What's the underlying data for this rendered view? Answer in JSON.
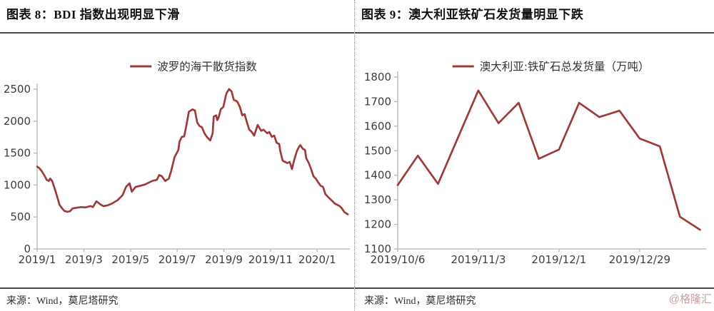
{
  "colors": {
    "line": "#9e3b3a",
    "axis": "#b5b5b5",
    "tick_text": "#3d3d3d",
    "rule": "#4a4a4a",
    "divider": "#9a9a9a",
    "watermark": "#c9a0a0"
  },
  "left_panel": {
    "title": "图表 8：BDI 指数出现明显下滑",
    "source": "来源：Wind，莫尼塔研究"
  },
  "right_panel": {
    "title": "图表 9：澳大利亚铁矿石发货量明显下跌",
    "source": "来源：Wind，莫尼塔研究",
    "watermark": "@格隆汇"
  },
  "chart_data": [
    {
      "type": "line",
      "panel": "left",
      "legend": "波罗的海干散货指数",
      "line_color": "#9e3b3a",
      "grid": false,
      "legend_position": "top-center",
      "x_axis": {
        "unit": "months since 2019/1",
        "tick_labels": [
          "2019/1",
          "2019/3",
          "2019/5",
          "2019/7",
          "2019/9",
          "2019/11",
          "2020/1"
        ],
        "tick_positions": [
          0,
          2,
          4,
          6,
          8,
          10,
          12
        ],
        "range": [
          0,
          13.4
        ]
      },
      "y_axis": {
        "ticks": [
          0,
          500,
          1000,
          1500,
          2000,
          2500
        ],
        "range": [
          0,
          2500
        ]
      },
      "points": [
        [
          0,
          1288
        ],
        [
          0.1,
          1262
        ],
        [
          0.2,
          1217
        ],
        [
          0.3,
          1157
        ],
        [
          0.41,
          1082
        ],
        [
          0.5,
          1064
        ],
        [
          0.56,
          1101
        ],
        [
          0.65,
          1060
        ],
        [
          0.81,
          877
        ],
        [
          0.96,
          690
        ],
        [
          1.07,
          634
        ],
        [
          1.17,
          595
        ],
        [
          1.3,
          580
        ],
        [
          1.41,
          590
        ],
        [
          1.52,
          634
        ],
        [
          1.7,
          645
        ],
        [
          1.9,
          655
        ],
        [
          2.05,
          650
        ],
        [
          2.17,
          660
        ],
        [
          2.29,
          672
        ],
        [
          2.39,
          655
        ],
        [
          2.54,
          746
        ],
        [
          2.7,
          700
        ],
        [
          2.84,
          670
        ],
        [
          3,
          680
        ],
        [
          3.2,
          709
        ],
        [
          3.45,
          765
        ],
        [
          3.66,
          840
        ],
        [
          3.81,
          970
        ],
        [
          3.96,
          1026
        ],
        [
          4.06,
          896
        ],
        [
          4.22,
          970
        ],
        [
          4.42,
          989
        ],
        [
          4.62,
          1008
        ],
        [
          4.93,
          1064
        ],
        [
          5.13,
          1082
        ],
        [
          5.23,
          1157
        ],
        [
          5.34,
          1138
        ],
        [
          5.49,
          1064
        ],
        [
          5.64,
          1101
        ],
        [
          5.74,
          1213
        ],
        [
          5.89,
          1437
        ],
        [
          6.05,
          1549
        ],
        [
          6.1,
          1680
        ],
        [
          6.2,
          1754
        ],
        [
          6.3,
          1760
        ],
        [
          6.4,
          1941
        ],
        [
          6.5,
          2146
        ],
        [
          6.66,
          2184
        ],
        [
          6.76,
          2165
        ],
        [
          6.86,
          1978
        ],
        [
          6.96,
          1922
        ],
        [
          7.06,
          1904
        ],
        [
          7.17,
          1810
        ],
        [
          7.27,
          1754
        ],
        [
          7.42,
          1698
        ],
        [
          7.52,
          1810
        ],
        [
          7.57,
          2072
        ],
        [
          7.67,
          2090
        ],
        [
          7.72,
          2016
        ],
        [
          7.77,
          2053
        ],
        [
          7.87,
          2184
        ],
        [
          7.98,
          2221
        ],
        [
          8.08,
          2389
        ],
        [
          8.13,
          2445
        ],
        [
          8.23,
          2501
        ],
        [
          8.33,
          2464
        ],
        [
          8.43,
          2333
        ],
        [
          8.54,
          2315
        ],
        [
          8.59,
          2296
        ],
        [
          8.69,
          2221
        ],
        [
          8.79,
          2090
        ],
        [
          8.89,
          2109
        ],
        [
          8.99,
          1978
        ],
        [
          9.09,
          1866
        ],
        [
          9.2,
          1829
        ],
        [
          9.3,
          1773
        ],
        [
          9.45,
          1941
        ],
        [
          9.6,
          1848
        ],
        [
          9.7,
          1866
        ],
        [
          9.86,
          1810
        ],
        [
          9.95,
          1829
        ],
        [
          10.06,
          1754
        ],
        [
          10.16,
          1773
        ],
        [
          10.26,
          1661
        ],
        [
          10.37,
          1642
        ],
        [
          10.42,
          1530
        ],
        [
          10.52,
          1381
        ],
        [
          10.62,
          1362
        ],
        [
          10.72,
          1344
        ],
        [
          10.82,
          1362
        ],
        [
          10.92,
          1250
        ],
        [
          11.02,
          1400
        ],
        [
          11.13,
          1530
        ],
        [
          11.23,
          1605
        ],
        [
          11.28,
          1624
        ],
        [
          11.38,
          1568
        ],
        [
          11.48,
          1549
        ],
        [
          11.53,
          1418
        ],
        [
          11.64,
          1344
        ],
        [
          11.74,
          1250
        ],
        [
          11.84,
          1138
        ],
        [
          11.94,
          1101
        ],
        [
          12.04,
          1045
        ],
        [
          12.15,
          989
        ],
        [
          12.25,
          970
        ],
        [
          12.35,
          858
        ],
        [
          12.45,
          820
        ],
        [
          12.55,
          783
        ],
        [
          12.66,
          746
        ],
        [
          12.76,
          709
        ],
        [
          12.86,
          690
        ],
        [
          12.96,
          672
        ],
        [
          13.06,
          634
        ],
        [
          13.16,
          578
        ],
        [
          13.31,
          541
        ]
      ]
    },
    {
      "type": "line",
      "panel": "right",
      "legend": "澳大利亚:铁矿石总发货量（万吨）",
      "line_color": "#9e3b3a",
      "grid": false,
      "legend_position": "top-center",
      "x_axis": {
        "unit": "weeks since 2019/10/6",
        "tick_labels": [
          "2019/10/6",
          "2019/11/3",
          "2019/12/1",
          "2019/12/29"
        ],
        "tick_positions": [
          0,
          4,
          8,
          12
        ],
        "range": [
          0,
          15.3
        ]
      },
      "y_axis": {
        "ticks": [
          1100,
          1200,
          1300,
          1400,
          1500,
          1600,
          1700,
          1800
        ],
        "range": [
          1100,
          1800
        ]
      },
      "dates": [
        "2019/10/6",
        "2019/10/13",
        "2019/10/20",
        "2019/10/27",
        "2019/11/3",
        "2019/11/10",
        "2019/11/17",
        "2019/11/24",
        "2019/12/1",
        "2019/12/8",
        "2019/12/15",
        "2019/12/22",
        "2019/12/29",
        "2020/1/5",
        "2020/1/12",
        "2020/1/19"
      ],
      "values": [
        1360,
        1480,
        1365,
        1555,
        1745,
        1612,
        1695,
        1467,
        1505,
        1695,
        1637,
        1663,
        1550,
        1518,
        1231,
        1178
      ]
    }
  ]
}
